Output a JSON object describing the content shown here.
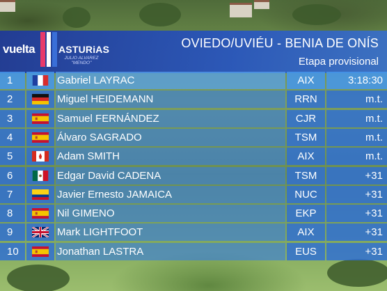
{
  "logo": {
    "word1": "vuelta",
    "word2": "ASTURiAS",
    "sub1": "JULIO ALVAREZ",
    "sub2": "\"MENDO\""
  },
  "stage": {
    "title": "OVIEDO/UVIÉU - BENIA DE ONÍS",
    "subtitle": "Etapa provisional"
  },
  "colors": {
    "header": "#2a4fb0",
    "row": "#2d6ed7",
    "logo_stripes": [
      "#e83a6a",
      "#ffffff",
      "#3a6fd8"
    ]
  },
  "rows": [
    {
      "pos": "1",
      "flag": "fr",
      "name": "Gabriel LAYRAC",
      "team": "AIX",
      "time": "3:18:30"
    },
    {
      "pos": "2",
      "flag": "de",
      "name": "Miguel HEIDEMANN",
      "team": "RRN",
      "time": "m.t."
    },
    {
      "pos": "3",
      "flag": "es",
      "name": "Samuel FERNÁNDEZ",
      "team": "CJR",
      "time": "m.t."
    },
    {
      "pos": "4",
      "flag": "es",
      "name": "Álvaro SAGRADO",
      "team": "TSM",
      "time": "m.t."
    },
    {
      "pos": "5",
      "flag": "ca",
      "name": "Adam SMITH",
      "team": "AIX",
      "time": "m.t."
    },
    {
      "pos": "6",
      "flag": "mx",
      "name": "Edgar David CADENA",
      "team": "TSM",
      "time": "+31"
    },
    {
      "pos": "7",
      "flag": "co",
      "name": "Javier Ernesto JAMAICA",
      "team": "NUC",
      "time": "+31"
    },
    {
      "pos": "8",
      "flag": "es",
      "name": "Nil GIMENO",
      "team": "EKP",
      "time": "+31"
    },
    {
      "pos": "9",
      "flag": "gb",
      "name": "Mark LIGHTFOOT",
      "team": "AIX",
      "time": "+31"
    },
    {
      "pos": "10",
      "flag": "es",
      "name": "Jonathan LASTRA",
      "team": "EUS",
      "time": "+31"
    }
  ]
}
